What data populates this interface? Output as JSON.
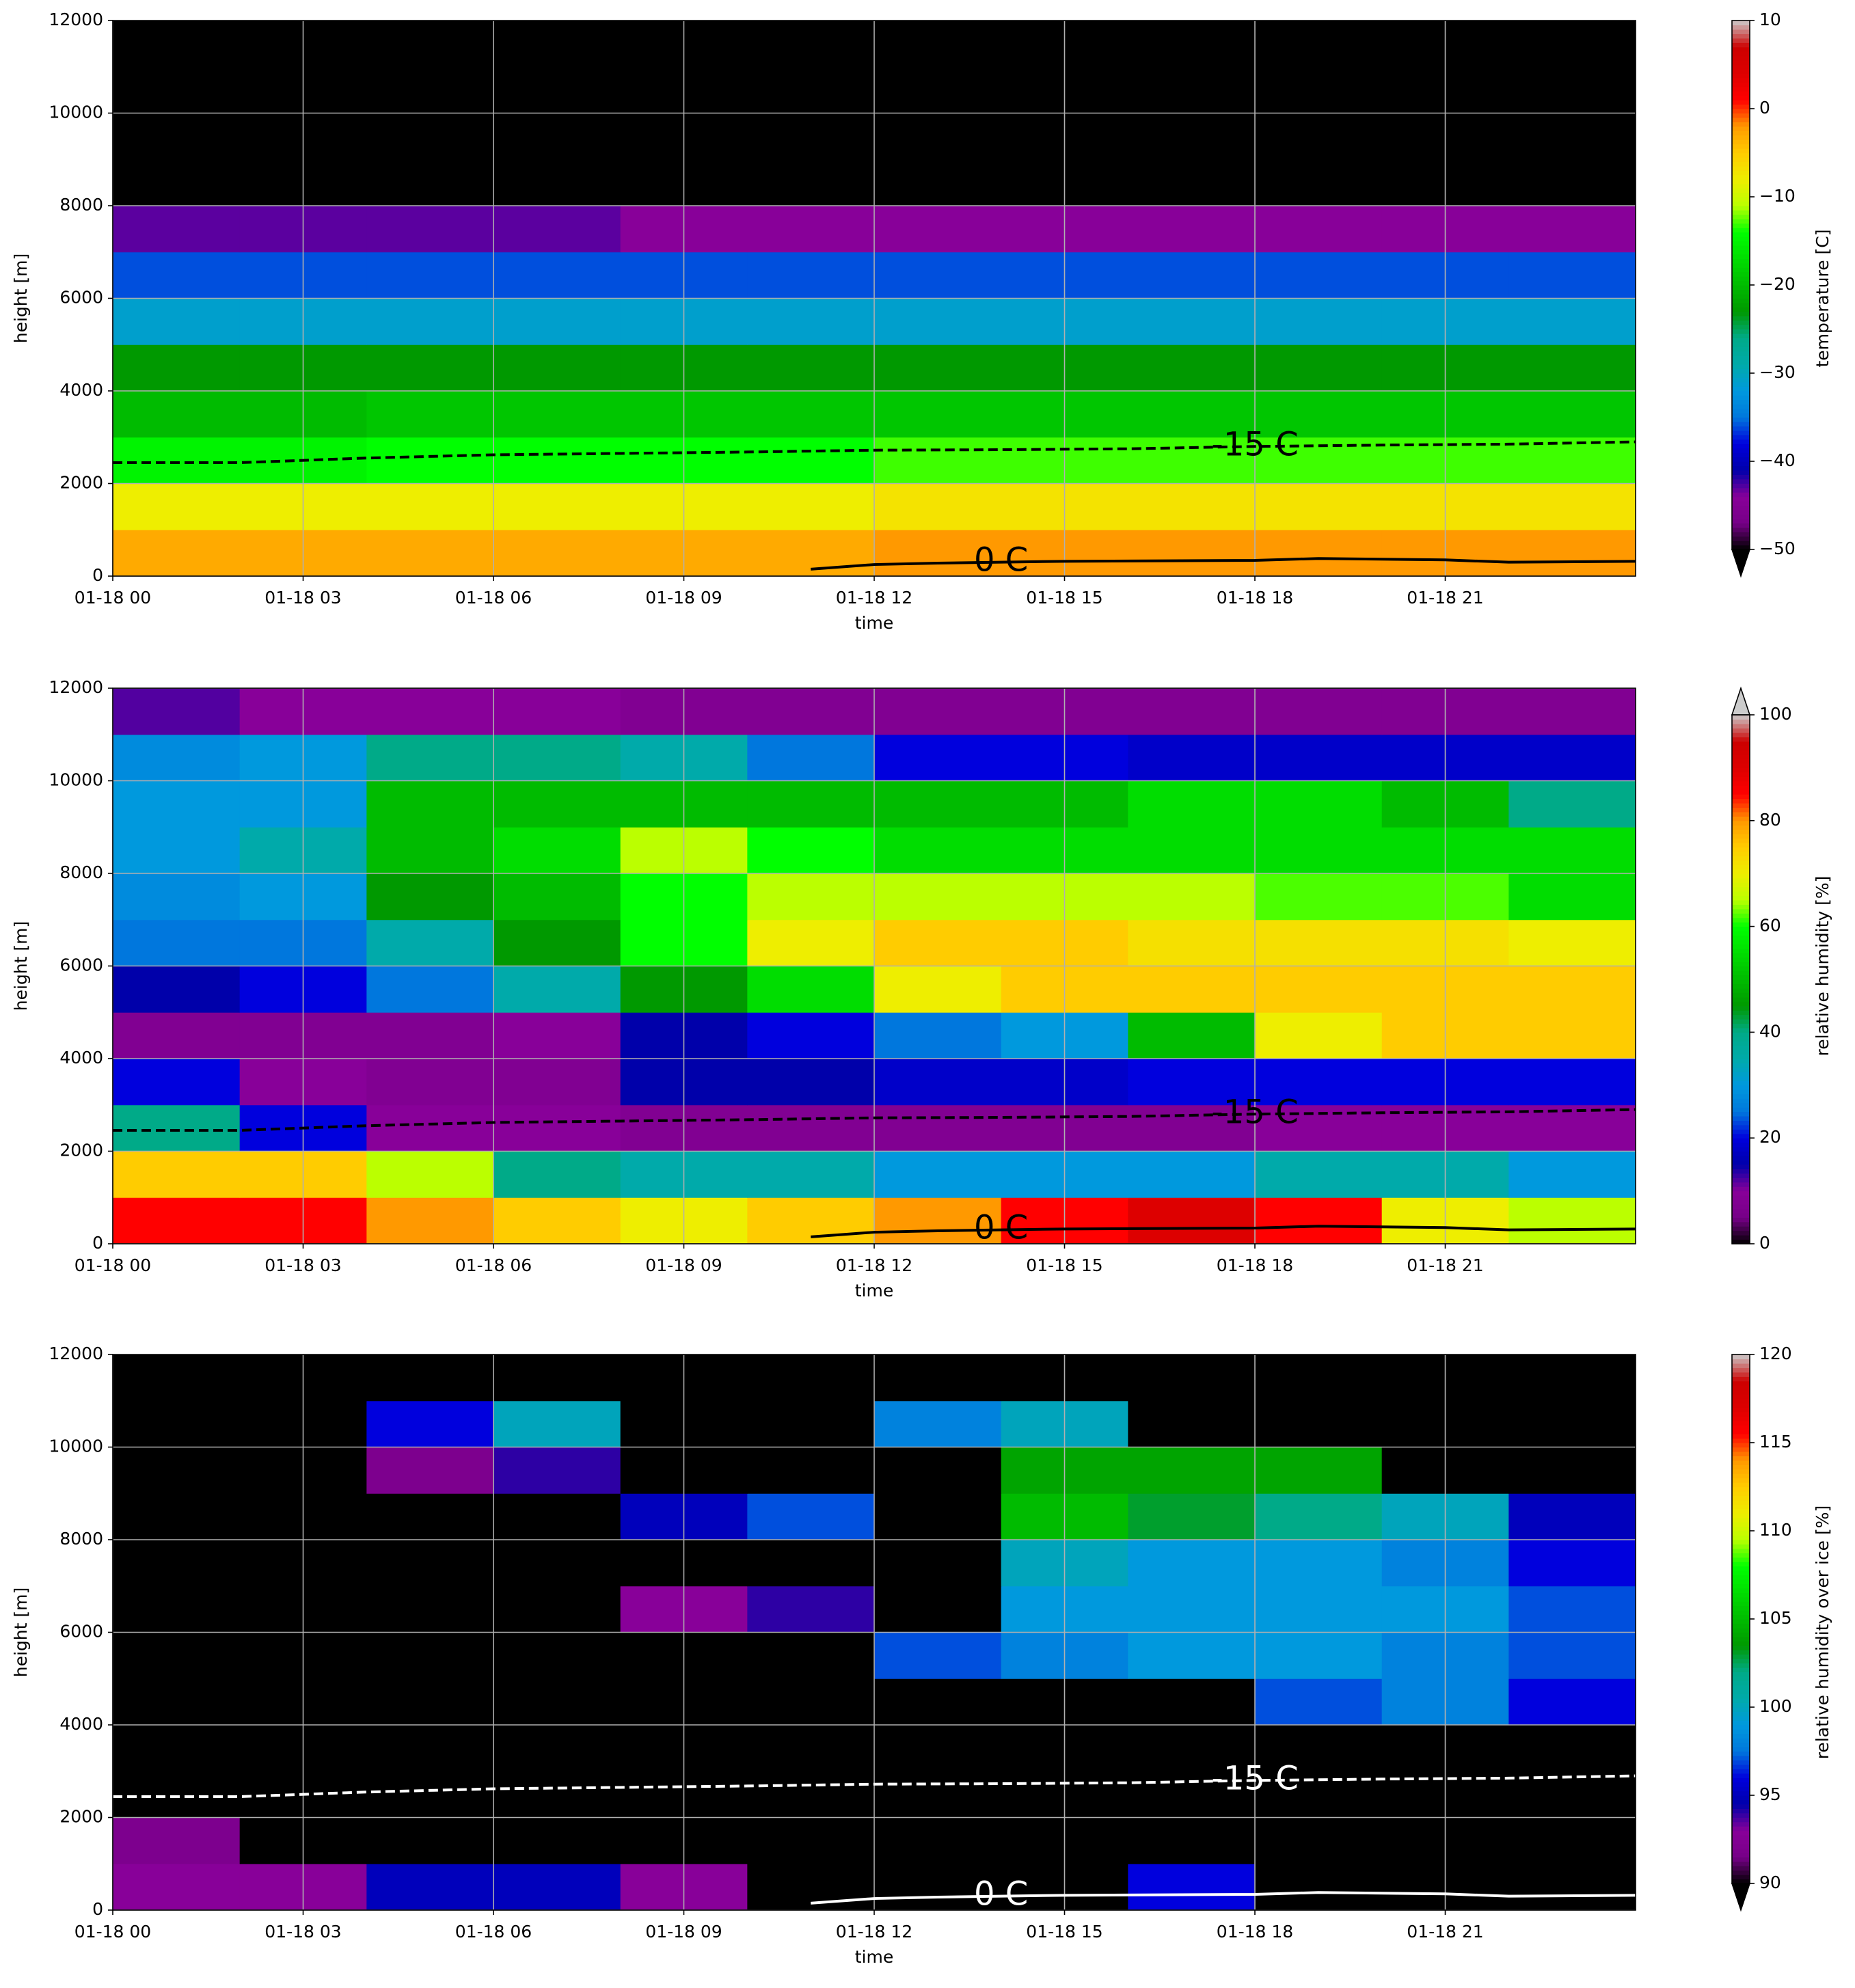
{
  "chart_data": [
    {
      "type": "heatmap",
      "colormap": "nipy_spectral",
      "xlabel": "time",
      "ylabel": "height [m]",
      "colorbar_label": "temperature [C]",
      "extend": "min",
      "xlim": [
        0,
        24
      ],
      "ylim": [
        0,
        12000
      ],
      "xticks": [
        {
          "value": 0,
          "label": "01-18 00"
        },
        {
          "value": 3,
          "label": "01-18 03"
        },
        {
          "value": 6,
          "label": "01-18 06"
        },
        {
          "value": 9,
          "label": "01-18 09"
        },
        {
          "value": 12,
          "label": "01-18 12"
        },
        {
          "value": 15,
          "label": "01-18 15"
        },
        {
          "value": 18,
          "label": "01-18 18"
        },
        {
          "value": 21,
          "label": "01-18 21"
        }
      ],
      "yticks": [
        0,
        2000,
        4000,
        6000,
        8000,
        10000,
        12000
      ],
      "grid": true,
      "clim": [
        -50,
        10
      ],
      "cticks": [
        {
          "value": -50,
          "label": "−50"
        },
        {
          "value": -40,
          "label": "−40"
        },
        {
          "value": -30,
          "label": "−30"
        },
        {
          "value": -20,
          "label": "−20"
        },
        {
          "value": -10,
          "label": "−10"
        },
        0,
        10
      ],
      "x": [
        0,
        2,
        4,
        6,
        8,
        10,
        12,
        14,
        16,
        18,
        20,
        22,
        24
      ],
      "y": [
        0,
        1000,
        2000,
        3000,
        4000,
        5000,
        6000,
        7000,
        8000,
        9000,
        10000,
        11000,
        12000
      ],
      "z": [
        [
          -3,
          -3,
          -3,
          -3,
          -3,
          -3,
          -2,
          -2,
          -2,
          -2,
          -2,
          -2
        ],
        [
          -8,
          -8,
          -8,
          -8,
          -8,
          -8,
          -7,
          -7,
          -7,
          -7,
          -7,
          -7
        ],
        [
          -15,
          -15,
          -14,
          -14,
          -14,
          -14,
          -13,
          -13,
          -13,
          -13,
          -13,
          -13
        ],
        [
          -20,
          -20,
          -19,
          -19,
          -19,
          -19,
          -19,
          -19,
          -19,
          -19,
          -19,
          -19
        ],
        [
          -23,
          -23,
          -23,
          -23,
          -23,
          -23,
          -23,
          -23,
          -23,
          -23,
          -23,
          -23
        ],
        [
          -31,
          -31,
          -31,
          -31,
          -31,
          -31,
          -31,
          -31,
          -31,
          -31,
          -31,
          -31
        ],
        [
          -36,
          -36,
          -36,
          -36,
          -36,
          -36,
          -36,
          -36,
          -36,
          -36,
          -36,
          -36
        ],
        [
          -43,
          -43,
          -43,
          -43,
          -44,
          -44,
          -44,
          -44,
          -44,
          -44,
          -44,
          -44
        ],
        [
          -53,
          -53,
          -53,
          -53,
          -53,
          -53,
          -53,
          -53,
          -53,
          -53,
          -53,
          -53
        ],
        [
          -60,
          -60,
          -60,
          -60,
          -60,
          -60,
          -60,
          -60,
          -60,
          -60,
          -60,
          -60
        ],
        [
          -60,
          -60,
          -60,
          -60,
          -60,
          -60,
          -60,
          -60,
          -60,
          -60,
          -60,
          -60
        ],
        [
          -60,
          -60,
          -60,
          -60,
          -60,
          -60,
          -60,
          -60,
          -60,
          -60,
          -60,
          -60
        ]
      ],
      "contours": [
        {
          "label": "-15 C",
          "style": "dashed",
          "color": "#000",
          "label_x": 18,
          "label_y": 2800,
          "x": [
            0,
            2,
            4,
            6,
            8,
            10,
            12,
            14,
            16,
            18,
            20,
            22,
            24
          ],
          "y": [
            2450,
            2450,
            2550,
            2620,
            2650,
            2680,
            2720,
            2730,
            2750,
            2800,
            2830,
            2850,
            2900
          ]
        },
        {
          "label": "0 C",
          "style": "solid",
          "color": "#000",
          "label_x": 14,
          "label_y": 300,
          "x": [
            11,
            12,
            13,
            14,
            15,
            18,
            19,
            21,
            22,
            24
          ],
          "y": [
            150,
            250,
            280,
            300,
            320,
            340,
            380,
            350,
            300,
            320
          ]
        }
      ]
    },
    {
      "type": "heatmap",
      "colormap": "nipy_spectral",
      "xlabel": "time",
      "ylabel": "height [m]",
      "colorbar_label": "relative humidity [%]",
      "extend": "max",
      "xlim": [
        0,
        24
      ],
      "ylim": [
        0,
        12000
      ],
      "xticks": [
        {
          "value": 0,
          "label": "01-18 00"
        },
        {
          "value": 3,
          "label": "01-18 03"
        },
        {
          "value": 6,
          "label": "01-18 06"
        },
        {
          "value": 9,
          "label": "01-18 09"
        },
        {
          "value": 12,
          "label": "01-18 12"
        },
        {
          "value": 15,
          "label": "01-18 15"
        },
        {
          "value": 18,
          "label": "01-18 18"
        },
        {
          "value": 21,
          "label": "01-18 21"
        }
      ],
      "yticks": [
        0,
        2000,
        4000,
        6000,
        8000,
        10000,
        12000
      ],
      "grid": true,
      "clim": [
        0,
        100
      ],
      "cticks": [
        0,
        20,
        40,
        60,
        80,
        100
      ],
      "x": [
        0,
        2,
        4,
        6,
        8,
        10,
        12,
        14,
        16,
        18,
        20,
        22,
        24
      ],
      "y": [
        0,
        1000,
        2000,
        3000,
        4000,
        5000,
        6000,
        7000,
        8000,
        9000,
        10000,
        11000,
        12000
      ],
      "z": [
        [
          85,
          85,
          80,
          75,
          70,
          75,
          80,
          85,
          90,
          85,
          70,
          65
        ],
        [
          75,
          75,
          65,
          40,
          35,
          35,
          30,
          30,
          30,
          35,
          35,
          30
        ],
        [
          40,
          20,
          10,
          10,
          8,
          8,
          8,
          8,
          8,
          10,
          10,
          10
        ],
        [
          20,
          10,
          8,
          8,
          15,
          15,
          18,
          18,
          20,
          20,
          20,
          20
        ],
        [
          8,
          8,
          8,
          10,
          15,
          20,
          25,
          30,
          50,
          70,
          75,
          75
        ],
        [
          15,
          20,
          25,
          35,
          45,
          55,
          70,
          75,
          75,
          75,
          75,
          75
        ],
        [
          25,
          25,
          35,
          45,
          60,
          70,
          75,
          75,
          72,
          72,
          72,
          70
        ],
        [
          28,
          30,
          45,
          50,
          60,
          65,
          65,
          65,
          65,
          62,
          62,
          55
        ],
        [
          30,
          35,
          50,
          55,
          65,
          60,
          55,
          55,
          55,
          55,
          55,
          55
        ],
        [
          30,
          30,
          50,
          50,
          50,
          50,
          50,
          50,
          55,
          55,
          50,
          40
        ],
        [
          28,
          30,
          40,
          40,
          35,
          25,
          20,
          20,
          18,
          18,
          18,
          18
        ],
        [
          12,
          10,
          10,
          10,
          8,
          8,
          8,
          8,
          8,
          8,
          8,
          8
        ]
      ],
      "contours": [
        {
          "label": "-15 C",
          "style": "dashed",
          "color": "#000",
          "label_x": 18,
          "label_y": 2800,
          "x": [
            0,
            2,
            4,
            6,
            8,
            10,
            12,
            14,
            16,
            18,
            20,
            22,
            24
          ],
          "y": [
            2450,
            2450,
            2550,
            2620,
            2650,
            2680,
            2720,
            2730,
            2750,
            2800,
            2830,
            2850,
            2900
          ]
        },
        {
          "label": "0 C",
          "style": "solid",
          "color": "#000",
          "label_x": 14,
          "label_y": 300,
          "x": [
            11,
            12,
            13,
            14,
            15,
            18,
            19,
            21,
            22,
            24
          ],
          "y": [
            150,
            250,
            280,
            300,
            320,
            340,
            380,
            350,
            300,
            320
          ]
        }
      ]
    },
    {
      "type": "heatmap",
      "colormap": "nipy_spectral",
      "xlabel": "time",
      "ylabel": "height [m]",
      "colorbar_label": "relative humidity over ice [%]",
      "extend": "min",
      "xlim": [
        0,
        24
      ],
      "ylim": [
        0,
        12000
      ],
      "xticks": [
        {
          "value": 0,
          "label": "01-18 00"
        },
        {
          "value": 3,
          "label": "01-18 03"
        },
        {
          "value": 6,
          "label": "01-18 06"
        },
        {
          "value": 9,
          "label": "01-18 09"
        },
        {
          "value": 12,
          "label": "01-18 12"
        },
        {
          "value": 15,
          "label": "01-18 15"
        },
        {
          "value": 18,
          "label": "01-18 18"
        },
        {
          "value": 21,
          "label": "01-18 21"
        }
      ],
      "yticks": [
        0,
        2000,
        4000,
        6000,
        8000,
        10000,
        12000
      ],
      "grid": true,
      "clim": [
        90,
        120
      ],
      "cticks": [
        90,
        95,
        100,
        105,
        110,
        115,
        120
      ],
      "x": [
        0,
        2,
        4,
        6,
        8,
        10,
        12,
        14,
        16,
        18,
        20,
        22,
        24
      ],
      "y": [
        0,
        1000,
        2000,
        3000,
        4000,
        5000,
        6000,
        7000,
        8000,
        9000,
        10000,
        11000,
        12000
      ],
      "z": [
        [
          93,
          93,
          95,
          95,
          93,
          85,
          85,
          85,
          96,
          85,
          85,
          85
        ],
        [
          92,
          85,
          80,
          80,
          80,
          80,
          80,
          80,
          80,
          80,
          80,
          80
        ],
        [
          80,
          80,
          80,
          80,
          80,
          80,
          80,
          80,
          80,
          80,
          80,
          80
        ],
        [
          80,
          80,
          80,
          80,
          80,
          80,
          80,
          80,
          80,
          80,
          80,
          80
        ],
        [
          80,
          80,
          80,
          80,
          80,
          80,
          80,
          80,
          80,
          97,
          98,
          96
        ],
        [
          80,
          80,
          80,
          80,
          80,
          80,
          97,
          98,
          99,
          99,
          98,
          97
        ],
        [
          80,
          80,
          80,
          80,
          93,
          94,
          80,
          99,
          99,
          99,
          99,
          97
        ],
        [
          80,
          80,
          80,
          80,
          80,
          80,
          80,
          100,
          99,
          99,
          98,
          96
        ],
        [
          80,
          80,
          80,
          80,
          95,
          97,
          80,
          105,
          103,
          102,
          100,
          95
        ],
        [
          80,
          80,
          92,
          94,
          80,
          80,
          80,
          104,
          104,
          104,
          80,
          80
        ],
        [
          80,
          80,
          96,
          100,
          80,
          80,
          98,
          100,
          80,
          80,
          80,
          80
        ],
        [
          80,
          80,
          80,
          80,
          80,
          80,
          80,
          80,
          80,
          80,
          80,
          80
        ]
      ],
      "contours": [
        {
          "label": "-15 C",
          "style": "dashed",
          "color": "#fff",
          "label_x": 18,
          "label_y": 2800,
          "x": [
            0,
            2,
            4,
            6,
            8,
            10,
            12,
            14,
            16,
            18,
            20,
            22,
            24
          ],
          "y": [
            2450,
            2450,
            2550,
            2620,
            2650,
            2680,
            2720,
            2730,
            2750,
            2800,
            2830,
            2850,
            2900
          ]
        },
        {
          "label": "0 C",
          "style": "solid",
          "color": "#fff",
          "label_x": 14,
          "label_y": 300,
          "x": [
            11,
            12,
            13,
            14,
            15,
            18,
            19,
            21,
            22,
            24
          ],
          "y": [
            150,
            250,
            280,
            300,
            320,
            340,
            380,
            350,
            300,
            320
          ]
        }
      ]
    }
  ]
}
